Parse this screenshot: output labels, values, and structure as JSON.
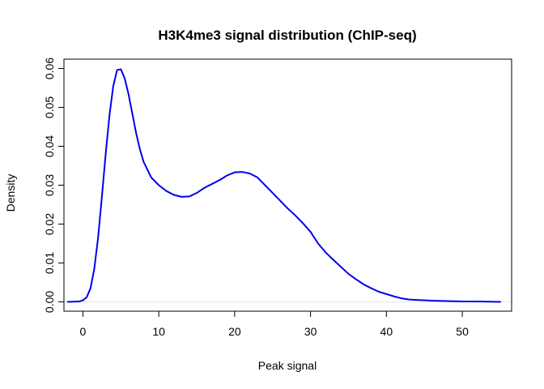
{
  "chart_data": {
    "type": "line",
    "title": "H3K4me3 signal distribution (ChIP-seq)",
    "xlabel": "Peak signal",
    "ylabel": "Density",
    "xlim": [
      -2.5,
      56.5
    ],
    "ylim": [
      -0.0024,
      0.0624
    ],
    "x_ticks": [
      0,
      10,
      20,
      30,
      40,
      50
    ],
    "x_tick_labels": [
      "0",
      "10",
      "20",
      "30",
      "40",
      "50"
    ],
    "y_ticks": [
      0,
      0.01,
      0.02,
      0.03,
      0.04,
      0.05,
      0.06
    ],
    "y_tick_labels": [
      "0.00",
      "0.01",
      "0.02",
      "0.03",
      "0.04",
      "0.05",
      "0.06"
    ],
    "zero_line": true,
    "colors": {
      "series": "#0000ee",
      "axis": "#000000",
      "zero_line": "#e6e6e6"
    },
    "series": [
      {
        "x": [
          -2.0,
          -0.5,
          0.0,
          0.5,
          1.0,
          1.5,
          2.0,
          2.5,
          3.0,
          3.5,
          4.0,
          4.5,
          5.0,
          5.5,
          6.0,
          6.5,
          7.0,
          7.5,
          8.0,
          9.0,
          10.0,
          11.0,
          12.0,
          13.0,
          14.0,
          15.0,
          16.0,
          17.0,
          18.0,
          19.0,
          20.0,
          21.0,
          22.0,
          23.0,
          24.0,
          25.0,
          26.0,
          27.0,
          28.0,
          29.0,
          30.0,
          31.0,
          32.0,
          33.0,
          34.0,
          35.0,
          36.0,
          37.0,
          38.0,
          39.0,
          40.0,
          41.0,
          42.0,
          43.0,
          44.0,
          45.0,
          46.0,
          48.0,
          50.0,
          52.0,
          55.0
        ],
        "y": [
          0.0,
          0.0001,
          0.0004,
          0.0012,
          0.0035,
          0.0085,
          0.0165,
          0.027,
          0.038,
          0.048,
          0.0555,
          0.0596,
          0.0598,
          0.0575,
          0.0535,
          0.0485,
          0.0435,
          0.0393,
          0.036,
          0.032,
          0.03,
          0.0285,
          0.0275,
          0.027,
          0.0271,
          0.028,
          0.0293,
          0.0303,
          0.0313,
          0.0325,
          0.0333,
          0.0334,
          0.033,
          0.032,
          0.03,
          0.028,
          0.026,
          0.024,
          0.0222,
          0.0202,
          0.018,
          0.015,
          0.0127,
          0.0108,
          0.009,
          0.0072,
          0.0058,
          0.0045,
          0.0035,
          0.0026,
          0.002,
          0.0014,
          0.0009,
          0.0006,
          0.0005,
          0.0004,
          0.0003,
          0.0002,
          0.0001,
          0.0001,
          0.0
        ]
      }
    ]
  }
}
